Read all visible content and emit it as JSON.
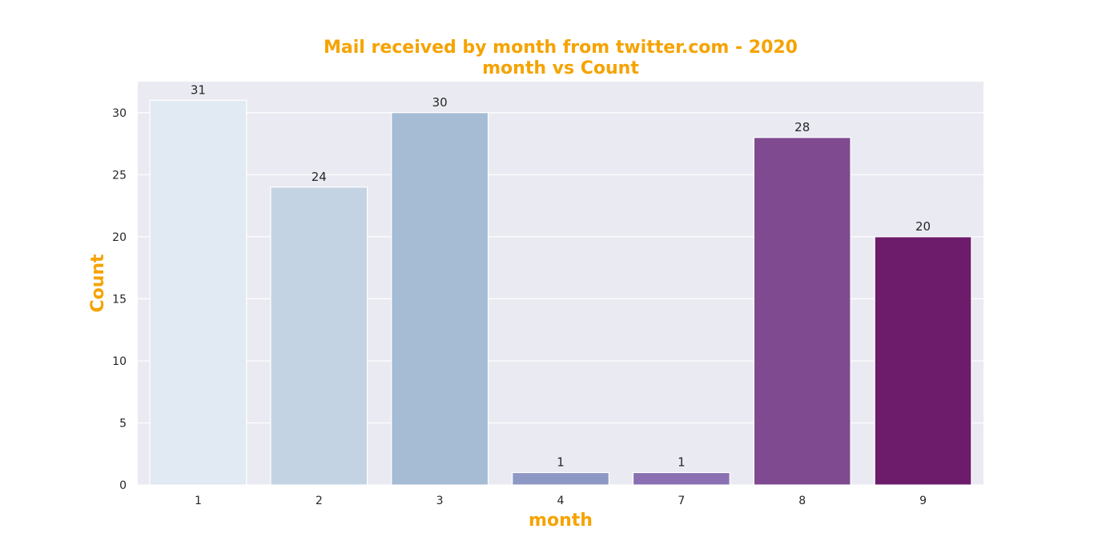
{
  "chart_data": {
    "type": "bar",
    "title": "Mail received by month from twitter.com - 2020",
    "subtitle": "month vs Count",
    "xlabel": "month",
    "ylabel": "Count",
    "categories": [
      "1",
      "2",
      "3",
      "4",
      "7",
      "8",
      "9"
    ],
    "values": [
      31,
      24,
      30,
      1,
      1,
      28,
      20
    ],
    "data_labels": [
      "31",
      "24",
      "30",
      "1",
      "1",
      "28",
      "20"
    ],
    "ylim": [
      0,
      32.5
    ],
    "yticks": [
      0,
      5,
      10,
      15,
      20,
      25,
      30
    ],
    "ytick_labels": [
      "0",
      "5",
      "10",
      "15",
      "20",
      "25",
      "30"
    ],
    "grid": true,
    "legend": "none",
    "colors": {
      "bars": [
        "#e1e9f3",
        "#c3d3e3",
        "#a6bbd4",
        "#8e98c4",
        "#8a70b2",
        "#7f4a90",
        "#6d1c6b"
      ],
      "plot_background": "#eaeaf2",
      "grid": "#ffffff",
      "title": "#f5a300",
      "axis_label": "#f5a300",
      "tick_text": "#262626"
    }
  }
}
